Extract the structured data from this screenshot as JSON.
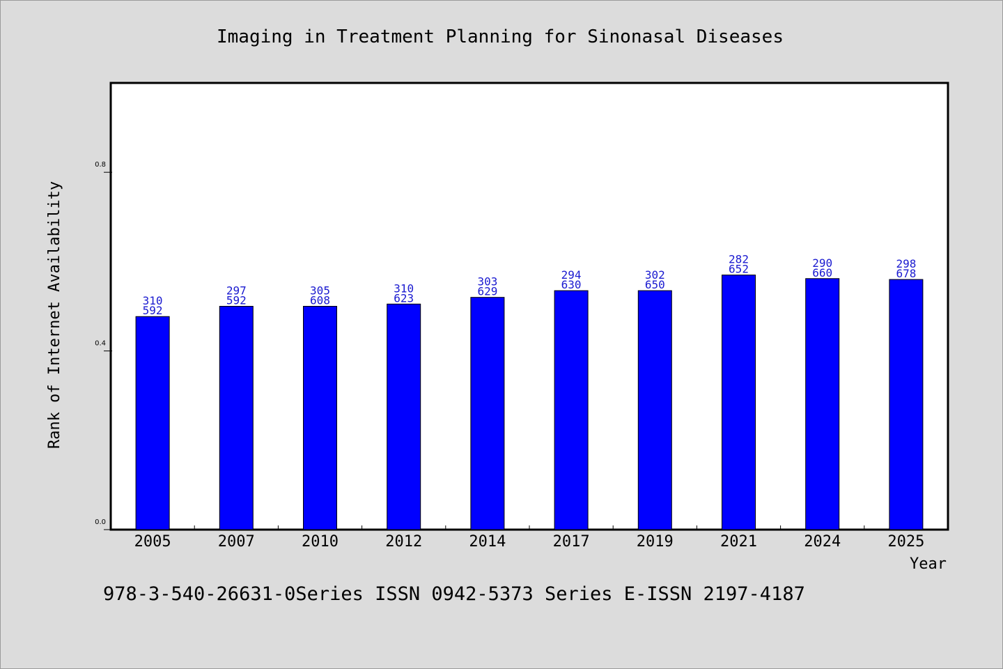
{
  "chart_data": {
    "type": "bar",
    "title": "Imaging in Treatment Planning for Sinonasal Diseases",
    "xlabel": "Year",
    "ylabel": "Rank of Internet Availability",
    "categories": [
      "2005",
      "2007",
      "2010",
      "2012",
      "2014",
      "2017",
      "2019",
      "2021",
      "2024",
      "2025"
    ],
    "values": [
      0.477,
      0.5,
      0.5,
      0.505,
      0.52,
      0.535,
      0.535,
      0.57,
      0.562,
      0.56
    ],
    "data_labels_top": [
      "310",
      "297",
      "305",
      "310",
      "303",
      "294",
      "302",
      "282",
      "290",
      "298"
    ],
    "data_labels_bottom": [
      "592",
      "592",
      "608",
      "623",
      "629",
      "630",
      "650",
      "652",
      "660",
      "678"
    ],
    "ylim": [
      0,
      1.0
    ],
    "yticks": [
      0.0,
      0.4,
      0.8
    ],
    "ytick_labels": [
      "0.0",
      "0.4",
      "0.8"
    ],
    "grid": false,
    "legend": "none",
    "colors": {
      "bar": "#0000ff",
      "data_label": "#1a1ad0",
      "background": "#dcdcdc",
      "plot_bg": "#ffffff"
    }
  },
  "footer_text": "978-3-540-26631-0Series ISSN 0942-5373 Series E-ISSN 2197-4187"
}
